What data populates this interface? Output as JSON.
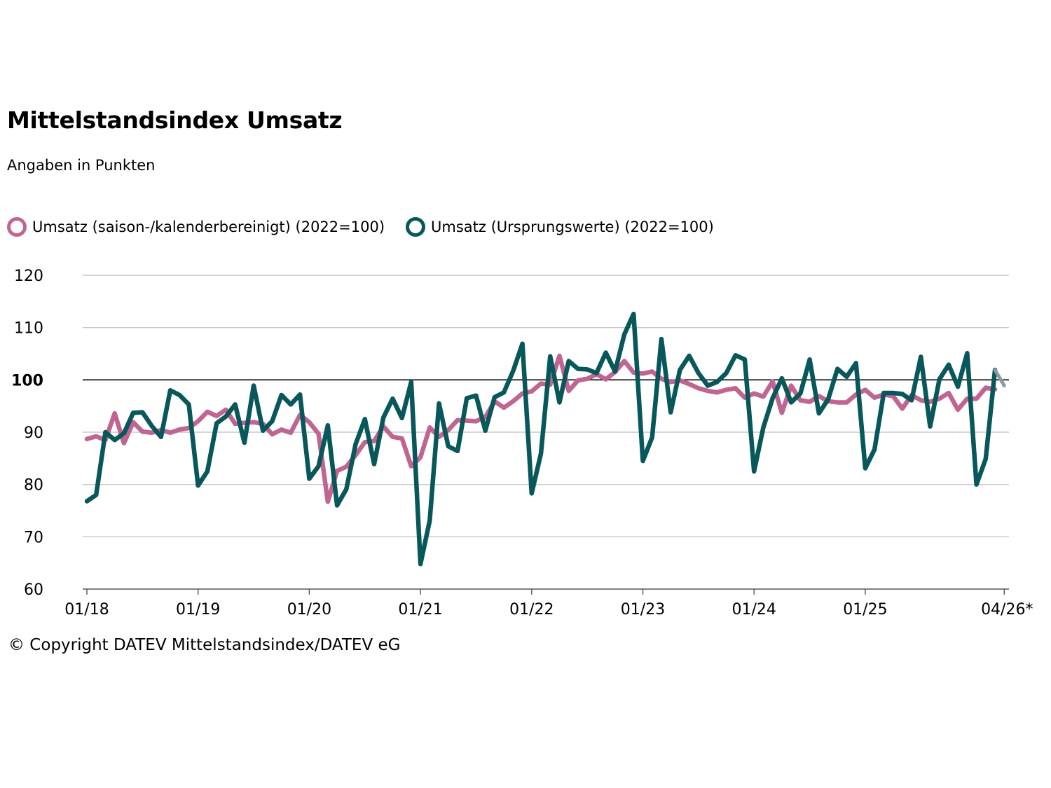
{
  "title": "Mittelstandsindex Umsatz",
  "subtitle": "Angaben in Punkten",
  "copyright": "© Copyright DATEV Mittelstandsindex/DATEV eG",
  "chart_data": {
    "type": "line",
    "ylim": [
      60,
      120
    ],
    "yticks": [
      "60",
      "70",
      "80",
      "90",
      "100",
      "110",
      "120"
    ],
    "reference_line": 100,
    "x_labels": [
      "01/18",
      "01/19",
      "01/20",
      "01/21",
      "01/22",
      "01/23",
      "01/24",
      "01/25",
      "04/26*"
    ],
    "x_label_months": [
      0,
      12,
      24,
      36,
      48,
      60,
      72,
      84,
      99
    ],
    "grid": "horizontal",
    "legend_position": "top-left",
    "series": [
      {
        "name": "Umsatz (saison-/kalenderbereinigt) (2022=100)",
        "color": "#c06591",
        "values": [
          88.7,
          89.2,
          88.5,
          93.6,
          87.9,
          91.9,
          90.1,
          89.9,
          90.4,
          89.9,
          90.5,
          90.8,
          92.1,
          93.9,
          93.1,
          94.3,
          91.6,
          91.8,
          91.9,
          91.6,
          89.6,
          90.5,
          89.9,
          93.3,
          91.9,
          89.7,
          76.7,
          82.6,
          83.4,
          85.6,
          88.1,
          88.3,
          91.1,
          89.1,
          88.8,
          83.5,
          85.2,
          90.9,
          89.1,
          90.4,
          92.3,
          92.2,
          92.1,
          92.9,
          95.9,
          94.7,
          95.9,
          97.4,
          97.8,
          99.3,
          99.1,
          104.6,
          97.9,
          99.9,
          100.2,
          101.1,
          100.1,
          101.5,
          103.6,
          101.4,
          101.2,
          101.6,
          100.2,
          99.6,
          99.9,
          99.2,
          98.4,
          97.9,
          97.6,
          98.1,
          98.4,
          96.6,
          97.4,
          96.8,
          99.7,
          93.7,
          98.9,
          96.1,
          95.8,
          96.9,
          95.9,
          95.7,
          95.7,
          97.2,
          98.1,
          96.6,
          97.2,
          96.9,
          94.5,
          97.1,
          96.1,
          95.8,
          96.4,
          97.5,
          94.3,
          96.4,
          96.4,
          98.5,
          98.2
        ],
        "projected_from_index": 98
      },
      {
        "name": "Umsatz (Ursprungswerte) (2022=100)",
        "color": "#07575b",
        "values": [
          76.8,
          78.0,
          90.0,
          88.5,
          89.8,
          93.7,
          93.8,
          91.2,
          89.1,
          98.0,
          97.1,
          95.3,
          79.8,
          82.5,
          91.7,
          93.0,
          95.3,
          88.0,
          98.9,
          90.3,
          92.1,
          97.1,
          95.3,
          97.2,
          81.1,
          83.5,
          91.3,
          76.0,
          79.1,
          87.7,
          92.5,
          83.9,
          92.8,
          96.4,
          92.7,
          99.6,
          64.8,
          73.1,
          95.5,
          87.3,
          86.4,
          96.5,
          97.0,
          90.3,
          96.7,
          97.6,
          101.7,
          106.9,
          78.3,
          85.9,
          104.5,
          95.7,
          103.6,
          102.1,
          102.0,
          101.3,
          105.2,
          101.6,
          108.7,
          112.6,
          84.5,
          89.0,
          107.8,
          93.8,
          101.9,
          104.6,
          101.3,
          98.9,
          99.6,
          101.3,
          104.7,
          103.9,
          82.5,
          90.9,
          96.5,
          100.3,
          95.7,
          97.4,
          103.9,
          93.6,
          96.3,
          102.1,
          100.6,
          103.2,
          83.1,
          86.7,
          97.5,
          97.5,
          97.3,
          96.1,
          104.4,
          91.1,
          100.1,
          102.9,
          98.7,
          105.1,
          80.0,
          84.9,
          101.9,
          98.9
        ],
        "projected_from_index": 98
      }
    ]
  }
}
